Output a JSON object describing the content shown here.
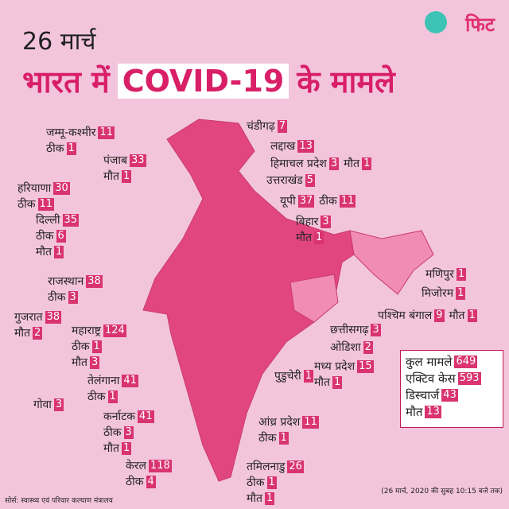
{
  "header": {
    "date": "26 मार्च",
    "title_pre": "भारत में",
    "title_highlight": "COVID-19",
    "title_post": "के मामले",
    "logo": "फिट"
  },
  "states": [
    {
      "lines": [
        [
          {
            "label": "जम्मू-कश्मीर",
            "value": 11
          }
        ],
        [
          {
            "label": "ठीक",
            "value": 1
          }
        ]
      ]
    },
    {
      "lines": [
        [
          {
            "label": "पंजाब",
            "value": 33
          }
        ],
        [
          {
            "label": "मौत",
            "value": 1
          }
        ]
      ]
    },
    {
      "lines": [
        [
          {
            "label": "हरियाणा",
            "value": 30
          }
        ],
        [
          {
            "label": "ठीक",
            "value": 11
          }
        ]
      ]
    },
    {
      "lines": [
        [
          {
            "label": "दिल्ली",
            "value": 35
          }
        ],
        [
          {
            "label": "ठीक",
            "value": 6
          }
        ],
        [
          {
            "label": "मौत",
            "value": 1
          }
        ]
      ]
    },
    {
      "lines": [
        [
          {
            "label": "राजस्थान",
            "value": 38
          }
        ],
        [
          {
            "label": "ठीक",
            "value": 3
          }
        ]
      ]
    },
    {
      "lines": [
        [
          {
            "label": "गुजरात",
            "value": 38
          }
        ],
        [
          {
            "label": "मौत",
            "value": 2
          }
        ]
      ]
    },
    {
      "lines": [
        [
          {
            "label": "महाराष्ट्र",
            "value": 124
          }
        ],
        [
          {
            "label": "ठीक",
            "value": 1
          }
        ],
        [
          {
            "label": "मौत",
            "value": 3
          }
        ]
      ]
    },
    {
      "lines": [
        [
          {
            "label": "तेलंगाना",
            "value": 41
          }
        ],
        [
          {
            "label": "ठीक",
            "value": 1
          }
        ]
      ]
    },
    {
      "lines": [
        [
          {
            "label": "गोवा",
            "value": 3
          }
        ]
      ]
    },
    {
      "lines": [
        [
          {
            "label": "कर्नाटक",
            "value": 41
          }
        ],
        [
          {
            "label": "ठीक",
            "value": 3
          }
        ],
        [
          {
            "label": "मौत",
            "value": 1
          }
        ]
      ]
    },
    {
      "lines": [
        [
          {
            "label": "केरल",
            "value": 118
          }
        ],
        [
          {
            "label": "ठीक",
            "value": 4
          }
        ]
      ]
    },
    {
      "lines": [
        [
          {
            "label": "चंडीगढ़",
            "value": 7
          }
        ]
      ]
    },
    {
      "lines": [
        [
          {
            "label": "लद्दाख",
            "value": 13
          }
        ]
      ]
    },
    {
      "lines": [
        [
          {
            "label": "हिमाचल प्रदेश",
            "value": 3
          },
          {
            "label": "मौत",
            "value": 1
          }
        ]
      ]
    },
    {
      "lines": [
        [
          {
            "label": "उत्तराखंड",
            "value": 5
          }
        ]
      ]
    },
    {
      "lines": [
        [
          {
            "label": "यूपी",
            "value": 37
          },
          {
            "label": "ठीक",
            "value": 11
          }
        ]
      ]
    },
    {
      "lines": [
        [
          {
            "label": "बिहार",
            "value": 3
          }
        ],
        [
          {
            "label": "मौत",
            "value": 1
          }
        ]
      ]
    },
    {
      "lines": [
        [
          {
            "label": "मणिपुर",
            "value": 1
          }
        ]
      ]
    },
    {
      "lines": [
        [
          {
            "label": "मिजोरम",
            "value": 1
          }
        ]
      ]
    },
    {
      "lines": [
        [
          {
            "label": "पश्चिम बंगाल",
            "value": 9
          },
          {
            "label": "मौत",
            "value": 1
          }
        ]
      ]
    },
    {
      "lines": [
        [
          {
            "label": "छत्तीसगढ़",
            "value": 3
          }
        ]
      ]
    },
    {
      "lines": [
        [
          {
            "label": "ओडिशा",
            "value": 2
          }
        ]
      ]
    },
    {
      "lines": [
        [
          {
            "label": "मध्य प्रदेश",
            "value": 15
          }
        ],
        [
          {
            "label": "मौत",
            "value": 1
          }
        ]
      ]
    },
    {
      "lines": [
        [
          {
            "label": "पुडुचेरी",
            "value": 1
          }
        ]
      ]
    },
    {
      "lines": [
        [
          {
            "label": "आंध्र प्रदेश",
            "value": 11
          }
        ],
        [
          {
            "label": "ठीक",
            "value": 1
          }
        ]
      ]
    },
    {
      "lines": [
        [
          {
            "label": "तमिलनाडु",
            "value": 26
          }
        ],
        [
          {
            "label": "ठीक",
            "value": 1
          }
        ],
        [
          {
            "label": "मौत",
            "value": 1
          }
        ]
      ]
    }
  ],
  "totals": [
    {
      "label": "कुल मामले",
      "value": 649
    },
    {
      "label": "एक्टिव केस",
      "value": 593
    },
    {
      "label": "डिस्चार्ज",
      "value": 43
    },
    {
      "label": "मौत",
      "value": 13
    }
  ],
  "source": "सोर्स: स्वास्थ्य एवं परिवार कल्याण मंत्रालय",
  "note": "(26 मार्च, 2020 की सुबह 10:15 बजे तक)"
}
